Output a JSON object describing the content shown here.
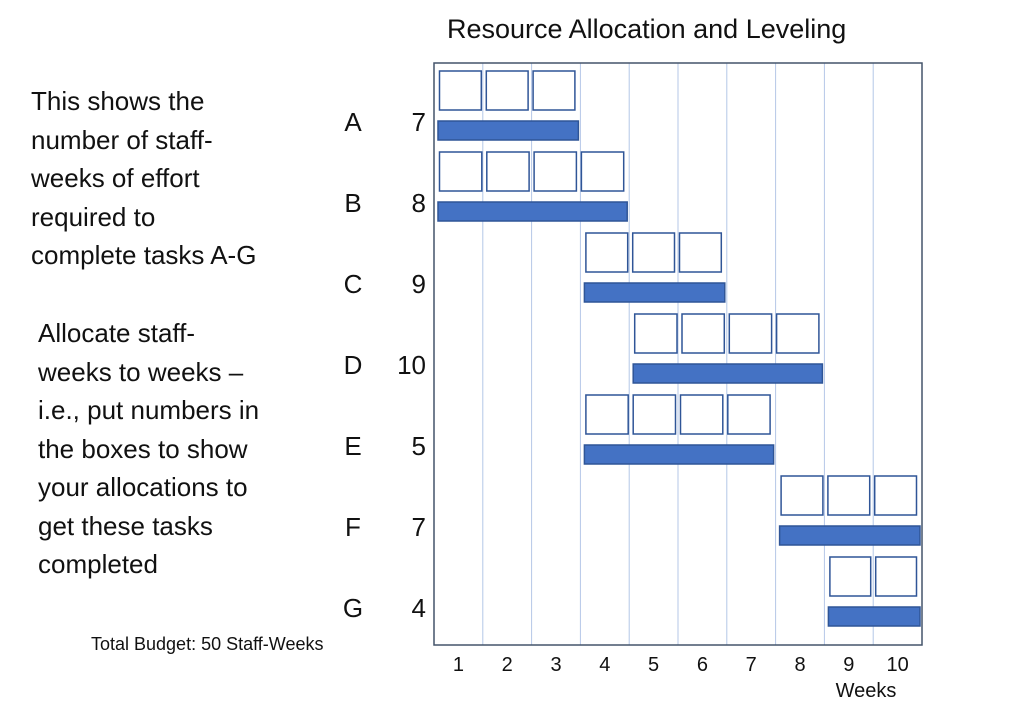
{
  "title": "Resource Allocation and Leveling",
  "instructions": {
    "paragraph1": [
      "This shows the",
      "number of staff-",
      "weeks of effort",
      "required to",
      "complete tasks A-G"
    ],
    "paragraph2": [
      "Allocate staff-",
      "weeks to weeks –",
      "i.e., put numbers in",
      "the boxes to show",
      "your allocations to",
      "get these tasks",
      "completed"
    ]
  },
  "budget_label": "Total Budget: 50 Staff-Weeks",
  "chart_data": {
    "type": "gantt",
    "xlabel": "Weeks",
    "weeks": [
      "1",
      "2",
      "3",
      "4",
      "5",
      "6",
      "7",
      "8",
      "9",
      "10"
    ],
    "tasks": [
      {
        "label": "A",
        "effort": "7",
        "start_week": 1,
        "end_week": 3,
        "boxes": 3
      },
      {
        "label": "B",
        "effort": "8",
        "start_week": 1,
        "end_week": 4,
        "boxes": 4
      },
      {
        "label": "C",
        "effort": "9",
        "start_week": 4,
        "end_week": 6,
        "boxes": 3
      },
      {
        "label": "D",
        "effort": "10",
        "start_week": 5,
        "end_week": 8,
        "boxes": 4
      },
      {
        "label": "E",
        "effort": "5",
        "start_week": 4,
        "end_week": 7,
        "boxes": 4
      },
      {
        "label": "F",
        "effort": "7",
        "start_week": 8,
        "end_week": 10,
        "boxes": 3
      },
      {
        "label": "G",
        "effort": "4",
        "start_week": 9,
        "end_week": 10,
        "boxes": 2
      }
    ],
    "colors": {
      "bar_fill": "#4472C4",
      "bar_stroke": "#2F5597",
      "box_stroke": "#2F5597",
      "frame": "#44546A",
      "grid": "#B4C7E7"
    }
  }
}
